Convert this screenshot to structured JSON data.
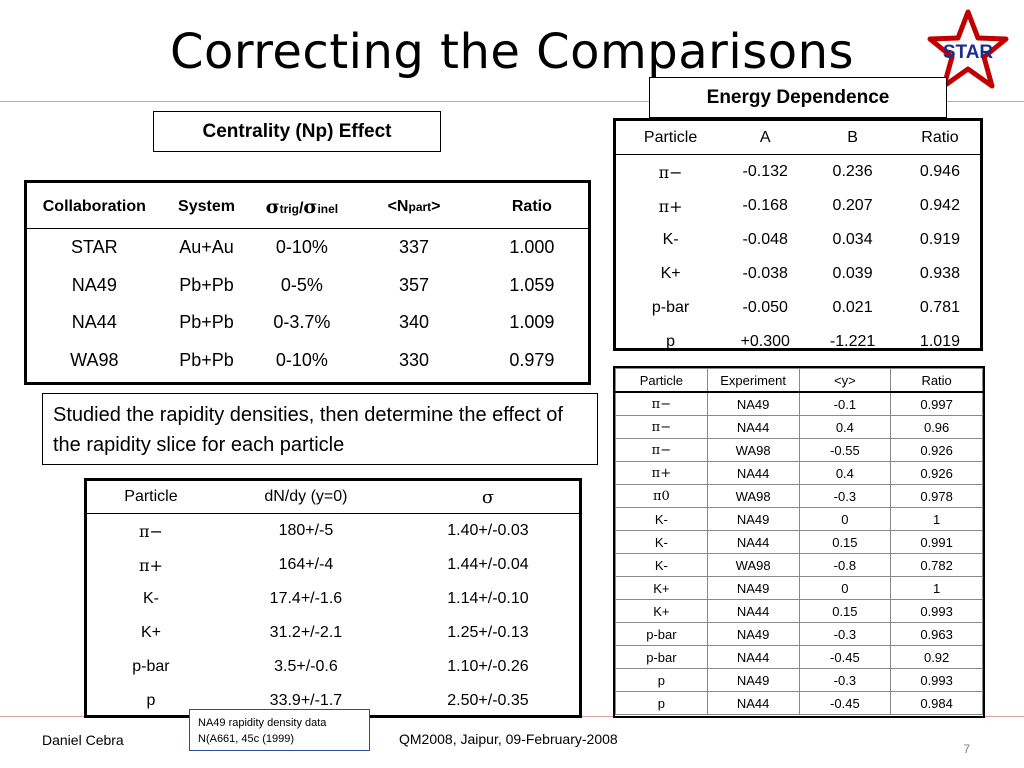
{
  "slide": {
    "title": "Correcting the Comparisons",
    "logo_text": "STAR",
    "page_number": "7",
    "footer_left": "Daniel Cebra",
    "footer_center": "QM2008, Jaipur, 09-February-2008",
    "footer_note_line1": "NA49 rapidity density data",
    "footer_note_line2": "N(A661, 45c (1999)",
    "accent_color": "#c00000"
  },
  "centrality": {
    "label": "Centrality (Np) Effect",
    "headers": [
      "Collaboration",
      "System",
      "σtrig/σinel",
      "<Npart>",
      "Ratio"
    ],
    "header_sigma1": "σ",
    "header_trig": "trig",
    "header_slash": "/",
    "header_sigma2": "σ",
    "header_inel": "inel",
    "header_npart_open": "<N",
    "header_part": "part",
    "header_npart_close": ">",
    "rows": [
      [
        "STAR",
        "Au+Au",
        "0-10%",
        "337",
        "1.000"
      ],
      [
        "NA49",
        "Pb+Pb",
        "0-5%",
        "357",
        "1.059"
      ],
      [
        "NA44",
        "Pb+Pb",
        "0-3.7%",
        "340",
        "1.009"
      ],
      [
        "WA98",
        "Pb+Pb",
        "0-10%",
        "330",
        "0.979"
      ]
    ]
  },
  "note": {
    "text": "Studied the rapidity densities, then determine the effect of the rapidity slice for each particle"
  },
  "energy": {
    "label": "Energy Dependence",
    "headers": [
      "Particle",
      "A",
      "B",
      "Ratio"
    ],
    "rows": [
      [
        "π−",
        "-0.132",
        "0.236",
        "0.946"
      ],
      [
        "π+",
        "-0.168",
        "0.207",
        "0.942"
      ],
      [
        "K-",
        "-0.048",
        "0.034",
        "0.919"
      ],
      [
        "K+",
        "-0.038",
        "0.039",
        "0.938"
      ],
      [
        "p-bar",
        "-0.050",
        "0.021",
        "0.781"
      ],
      [
        "p",
        "+0.300",
        "-1.221",
        "1.019"
      ]
    ]
  },
  "rapidity": {
    "headers": [
      "Particle",
      "Experiment",
      "<y>",
      "Ratio"
    ],
    "rows": [
      [
        "π−",
        "NA49",
        "-0.1",
        "0.997"
      ],
      [
        "π−",
        "NA44",
        "0.4",
        "0.96"
      ],
      [
        "π−",
        "WA98",
        "-0.55",
        "0.926"
      ],
      [
        "π+",
        "NA44",
        "0.4",
        "0.926"
      ],
      [
        "π0",
        "WA98",
        "-0.3",
        "0.978"
      ],
      [
        "K-",
        "NA49",
        "0",
        "1"
      ],
      [
        "K-",
        "NA44",
        "0.15",
        "0.991"
      ],
      [
        "K-",
        "WA98",
        "-0.8",
        "0.782"
      ],
      [
        "K+",
        "NA49",
        "0",
        "1"
      ],
      [
        "K+",
        "NA44",
        "0.15",
        "0.993"
      ],
      [
        "p-bar",
        "NA49",
        "-0.3",
        "0.963"
      ],
      [
        "p-bar",
        "NA44",
        "-0.45",
        "0.92"
      ],
      [
        "p",
        "NA49",
        "-0.3",
        "0.993"
      ],
      [
        "p",
        "NA44",
        "-0.45",
        "0.984"
      ]
    ]
  },
  "dndy": {
    "headers": [
      "Particle",
      "dN/dy (y=0)",
      "σ"
    ],
    "rows": [
      [
        "π−",
        "180+/-5",
        "1.40+/-0.03"
      ],
      [
        "π+",
        "164+/-4",
        "1.44+/-0.04"
      ],
      [
        "K-",
        "17.4+/-1.6",
        "1.14+/-0.10"
      ],
      [
        "K+",
        "31.2+/-2.1",
        "1.25+/-0.13"
      ],
      [
        "p-bar",
        "3.5+/-0.6",
        "1.10+/-0.26"
      ],
      [
        "p",
        "33.9+/-1.7",
        "2.50+/-0.35"
      ]
    ]
  }
}
